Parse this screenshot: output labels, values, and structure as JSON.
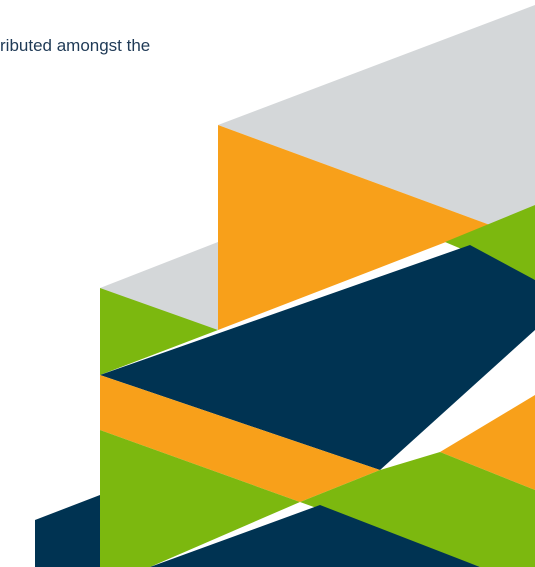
{
  "text": "ributed amongst the"
}
